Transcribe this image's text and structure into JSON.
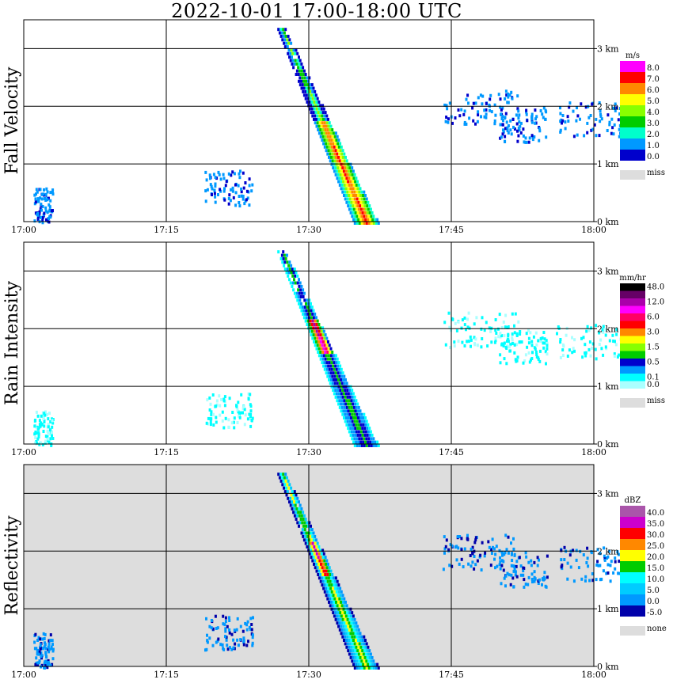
{
  "title": "2022-10-01   17:00-18:00 UTC",
  "chart_data": {
    "type": "heatmap",
    "x_range": [
      "17:00",
      "18:00"
    ],
    "x_ticks": [
      "17:00",
      "17:15",
      "17:30",
      "17:45",
      "18:00"
    ],
    "y_range_km": [
      0,
      3.5
    ],
    "y_ticks": [
      "0 km",
      "1 km",
      "2 km",
      "3 km"
    ],
    "grid": true,
    "panels": [
      {
        "ylabel": "Fall Velocity",
        "unit": "m/s",
        "legend": [
          "8.0",
          "7.0",
          "6.0",
          "5.0",
          "4.0",
          "3.0",
          "2.0",
          "1.0",
          "0.0"
        ],
        "legend_colors": [
          "#ff00ff",
          "#ff0000",
          "#ff8800",
          "#ffff00",
          "#88ff00",
          "#00cc00",
          "#00ffcc",
          "#0099ff",
          "#0000cc"
        ],
        "missing_label": "miss",
        "missing_color": "#dddddd",
        "background": "#ffffff"
      },
      {
        "ylabel": "Rain Intensity",
        "unit": "mm/hr",
        "legend": [
          "48.0",
          "",
          "12.0",
          "",
          "6.0",
          "",
          "3.0",
          "",
          "1.5",
          "",
          "0.5",
          "",
          "0.1",
          "0.0"
        ],
        "legend_colors": [
          "#000000",
          "#660066",
          "#aa00aa",
          "#ff00ff",
          "#ff0066",
          "#ff0000",
          "#ff8800",
          "#ffff00",
          "#88ff00",
          "#00cc00",
          "#0000cc",
          "#0099ff",
          "#00ffff",
          "#aaffff"
        ],
        "missing_label": "miss",
        "missing_color": "#dddddd",
        "background": "#ffffff"
      },
      {
        "ylabel": "Reflectivity",
        "unit": "dBZ",
        "legend": [
          "40.0",
          "35.0",
          "30.0",
          "25.0",
          "20.0",
          "15.0",
          "10.0",
          "5.0",
          "0.0",
          "-5.0"
        ],
        "legend_colors": [
          "#aa55aa",
          "#cc00cc",
          "#ff0000",
          "#ff8800",
          "#ffff00",
          "#00cc00",
          "#00ffff",
          "#00ccff",
          "#0099ff",
          "#0000aa"
        ],
        "missing_label": "none",
        "missing_color": "#dddddd",
        "background": "#dddddd"
      }
    ]
  }
}
